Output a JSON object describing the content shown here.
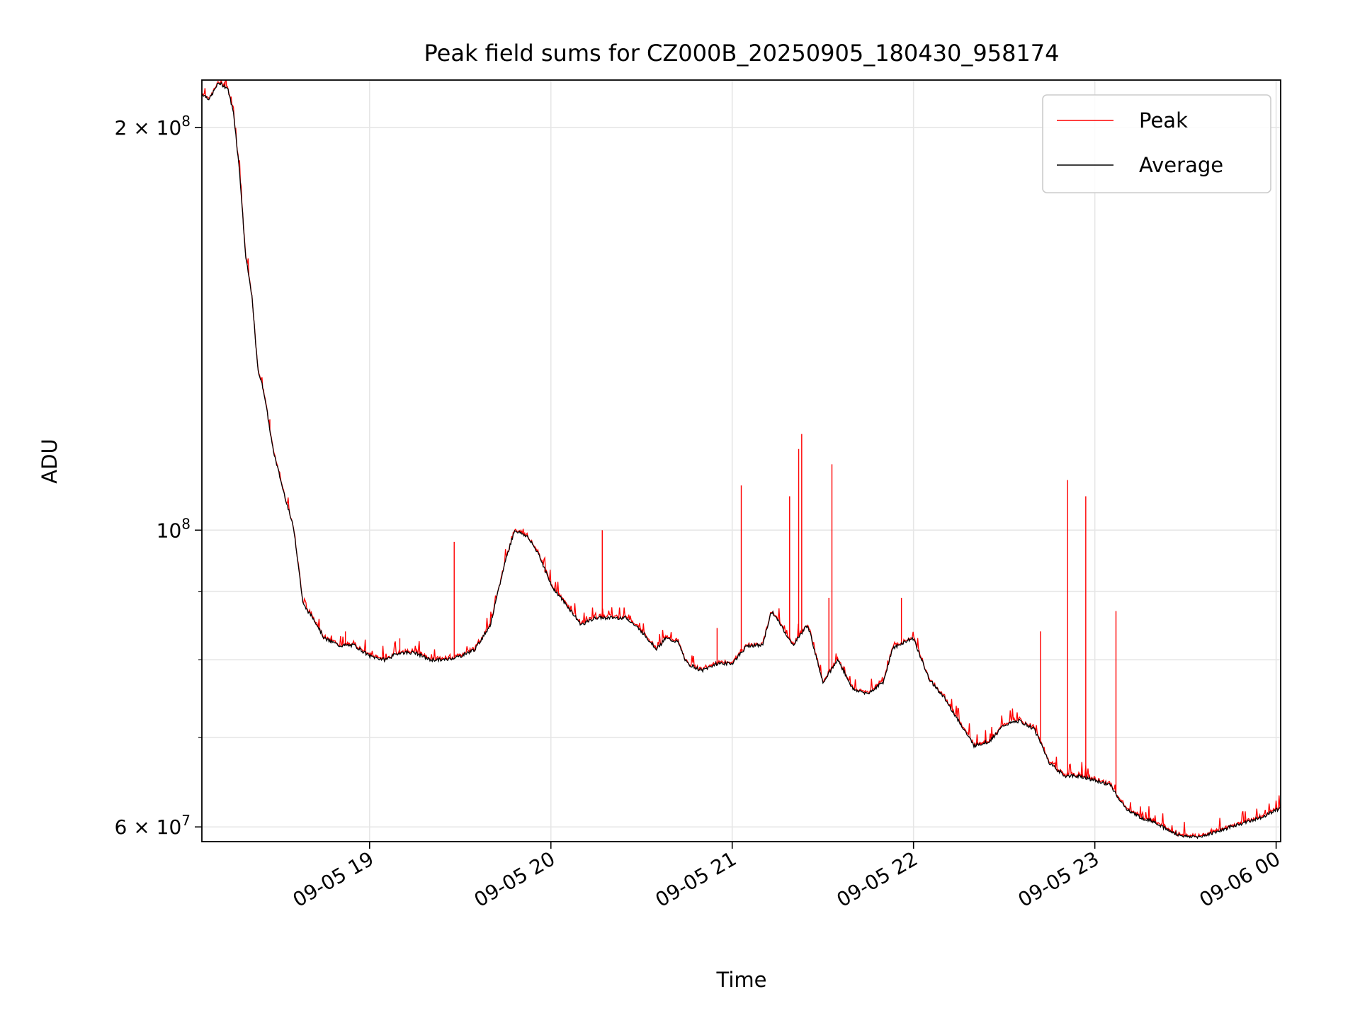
{
  "chart_data": {
    "type": "line",
    "title": "Peak field sums for CZ000B_20250905_180430_958174",
    "xlabel": "Time",
    "ylabel": "ADU",
    "yscale": "log",
    "xlim": [
      "2025-09-05 18:04:30",
      "2025-09-06 00:01:30"
    ],
    "ylim": [
      58500000,
      217000000
    ],
    "grid": true,
    "legend_position": "top-right",
    "x_ticks": [
      {
        "time": "2025-09-05 19:00",
        "label": "09-05 19"
      },
      {
        "time": "2025-09-05 20:00",
        "label": "09-05 20"
      },
      {
        "time": "2025-09-05 21:00",
        "label": "09-05 21"
      },
      {
        "time": "2025-09-05 22:00",
        "label": "09-05 22"
      },
      {
        "time": "2025-09-05 23:00",
        "label": "09-05 23"
      },
      {
        "time": "2025-09-06 00:00",
        "label": "09-06 00"
      }
    ],
    "y_major_ticks": [
      {
        "value": 60000000,
        "mantissa": "6 × 10",
        "exponent": "7"
      },
      {
        "value": 100000000,
        "mantissa": "10",
        "exponent": "8"
      },
      {
        "value": 200000000,
        "mantissa": "2 × 10",
        "exponent": "8"
      }
    ],
    "y_minor_gridlines": [
      70000000,
      80000000,
      90000000
    ],
    "series": [
      {
        "name": "Average",
        "color": "#000000",
        "points": [
          [
            "2025-09-05 18:04:30",
            212000000
          ],
          [
            "2025-09-05 18:07",
            210000000
          ],
          [
            "2025-09-05 18:10",
            216000000
          ],
          [
            "2025-09-05 18:13",
            214000000
          ],
          [
            "2025-09-05 18:15",
            205000000
          ],
          [
            "2025-09-05 18:17",
            185000000
          ],
          [
            "2025-09-05 18:19",
            160000000
          ],
          [
            "2025-09-05 18:21",
            150000000
          ],
          [
            "2025-09-05 18:23",
            132000000
          ],
          [
            "2025-09-05 18:25",
            127000000
          ],
          [
            "2025-09-05 18:28",
            115000000
          ],
          [
            "2025-09-05 18:31",
            108000000
          ],
          [
            "2025-09-05 18:35",
            100000000
          ],
          [
            "2025-09-05 18:38",
            88000000
          ],
          [
            "2025-09-05 18:42",
            85500000
          ],
          [
            "2025-09-05 18:45",
            83000000
          ],
          [
            "2025-09-05 18:50",
            82000000
          ],
          [
            "2025-09-05 18:55",
            82000000
          ],
          [
            "2025-09-05 19:00",
            80500000
          ],
          [
            "2025-09-05 19:05",
            80000000
          ],
          [
            "2025-09-05 19:10",
            81000000
          ],
          [
            "2025-09-05 19:15",
            81000000
          ],
          [
            "2025-09-05 19:20",
            80000000
          ],
          [
            "2025-09-05 19:25",
            80000000
          ],
          [
            "2025-09-05 19:30",
            80500000
          ],
          [
            "2025-09-05 19:35",
            81500000
          ],
          [
            "2025-09-05 19:40",
            85000000
          ],
          [
            "2025-09-05 19:45",
            95000000
          ],
          [
            "2025-09-05 19:48",
            100000000
          ],
          [
            "2025-09-05 19:52",
            99000000
          ],
          [
            "2025-09-05 19:56",
            96000000
          ],
          [
            "2025-09-05 20:00",
            91000000
          ],
          [
            "2025-09-05 20:05",
            88000000
          ],
          [
            "2025-09-05 20:10",
            85000000
          ],
          [
            "2025-09-05 20:15",
            86000000
          ],
          [
            "2025-09-05 20:20",
            86000000
          ],
          [
            "2025-09-05 20:25",
            86000000
          ],
          [
            "2025-09-05 20:30",
            84000000
          ],
          [
            "2025-09-05 20:35",
            81500000
          ],
          [
            "2025-09-05 20:38",
            83000000
          ],
          [
            "2025-09-05 20:42",
            82500000
          ],
          [
            "2025-09-05 20:45",
            79500000
          ],
          [
            "2025-09-05 20:50",
            78500000
          ],
          [
            "2025-09-05 20:55",
            79500000
          ],
          [
            "2025-09-05 21:00",
            79500000
          ],
          [
            "2025-09-05 21:05",
            82000000
          ],
          [
            "2025-09-05 21:10",
            82000000
          ],
          [
            "2025-09-05 21:13",
            87000000
          ],
          [
            "2025-09-05 21:16",
            85000000
          ],
          [
            "2025-09-05 21:20",
            82000000
          ],
          [
            "2025-09-05 21:25",
            85000000
          ],
          [
            "2025-09-05 21:30",
            77000000
          ],
          [
            "2025-09-05 21:35",
            80000000
          ],
          [
            "2025-09-05 21:40",
            76000000
          ],
          [
            "2025-09-05 21:45",
            75500000
          ],
          [
            "2025-09-05 21:50",
            77000000
          ],
          [
            "2025-09-05 21:53",
            81500000
          ],
          [
            "2025-09-05 21:57",
            82500000
          ],
          [
            "2025-09-05 22:00",
            83000000
          ],
          [
            "2025-09-05 22:05",
            77500000
          ],
          [
            "2025-09-05 22:10",
            75000000
          ],
          [
            "2025-09-05 22:15",
            72000000
          ],
          [
            "2025-09-05 22:20",
            69000000
          ],
          [
            "2025-09-05 22:25",
            69500000
          ],
          [
            "2025-09-05 22:30",
            71500000
          ],
          [
            "2025-09-05 22:35",
            72000000
          ],
          [
            "2025-09-05 22:40",
            71000000
          ],
          [
            "2025-09-05 22:45",
            67000000
          ],
          [
            "2025-09-05 22:50",
            65500000
          ],
          [
            "2025-09-05 22:55",
            65500000
          ],
          [
            "2025-09-05 23:00",
            65000000
          ],
          [
            "2025-09-05 23:05",
            64500000
          ],
          [
            "2025-09-05 23:10",
            62000000
          ],
          [
            "2025-09-05 23:15",
            61000000
          ],
          [
            "2025-09-05 23:20",
            60500000
          ],
          [
            "2025-09-05 23:25",
            59500000
          ],
          [
            "2025-09-05 23:30",
            59000000
          ],
          [
            "2025-09-05 23:35",
            59000000
          ],
          [
            "2025-09-05 23:40",
            59500000
          ],
          [
            "2025-09-05 23:45",
            60000000
          ],
          [
            "2025-09-05 23:50",
            60500000
          ],
          [
            "2025-09-05 23:55",
            61000000
          ],
          [
            "2025-09-06 00:01:30",
            62000000
          ]
        ]
      },
      {
        "name": "Peak",
        "color": "#ff0000",
        "spikes": [
          [
            "2025-09-05 18:27",
            121000000
          ],
          [
            "2025-09-05 18:52",
            84000000
          ],
          [
            "2025-09-05 19:10",
            83000000
          ],
          [
            "2025-09-05 19:28",
            98000000
          ],
          [
            "2025-09-05 19:58",
            93000000
          ],
          [
            "2025-09-05 20:17",
            100000000
          ],
          [
            "2025-09-05 20:55",
            84500000
          ],
          [
            "2025-09-05 21:03",
            108000000
          ],
          [
            "2025-09-05 21:19",
            106000000
          ],
          [
            "2025-09-05 21:22",
            115000000
          ],
          [
            "2025-09-05 21:23",
            118000000
          ],
          [
            "2025-09-05 21:32",
            89000000
          ],
          [
            "2025-09-05 21:33",
            112000000
          ],
          [
            "2025-09-05 21:56",
            89000000
          ],
          [
            "2025-09-05 22:42",
            84000000
          ],
          [
            "2025-09-05 22:51",
            109000000
          ],
          [
            "2025-09-05 22:57",
            106000000
          ],
          [
            "2025-09-05 23:07",
            87000000
          ]
        ]
      }
    ]
  }
}
